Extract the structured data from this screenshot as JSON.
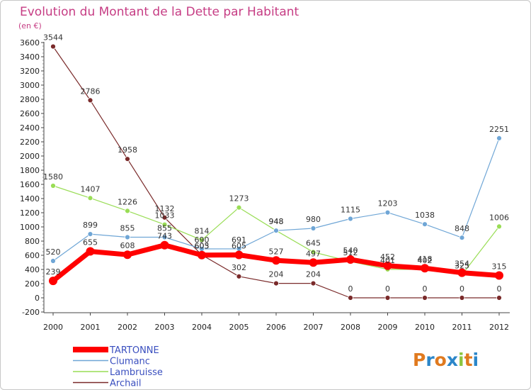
{
  "chart_data": {
    "type": "line",
    "title": "Evolution du Montant de la Dette par Habitant",
    "subtitle": "(en €)",
    "xlabel": "",
    "ylabel": "",
    "ylim": [
      -200,
      3600
    ],
    "y_ticks": [
      -200,
      0,
      200,
      400,
      600,
      800,
      1000,
      1200,
      1400,
      1600,
      1800,
      2000,
      2200,
      2400,
      2600,
      2800,
      3000,
      3200,
      3400,
      3600
    ],
    "categories": [
      "2000",
      "2001",
      "2002",
      "2003",
      "2004",
      "2005",
      "2006",
      "2007",
      "2008",
      "2009",
      "2010",
      "2011",
      "2012"
    ],
    "grid": false,
    "legend_position": "bottom-left",
    "series": [
      {
        "name": "TARTONNE",
        "color": "#ff0000",
        "values": [
          239,
          655,
          608,
          743,
          603,
          605,
          527,
          497,
          540,
          452,
          418,
          354,
          315
        ]
      },
      {
        "name": "Clumanc",
        "color": "#6fa6d6",
        "values": [
          520,
          899,
          855,
          855,
          690,
          691,
          948,
          980,
          1115,
          1203,
          1038,
          848,
          2251
        ]
      },
      {
        "name": "Lambruisse",
        "color": "#99dd55",
        "values": [
          1580,
          1407,
          1226,
          1033,
          814,
          1273,
          948,
          645,
          512,
          401,
          402,
          325,
          1006
        ]
      },
      {
        "name": "Archail",
        "color": "#7a2a2a",
        "values": [
          3544,
          2786,
          1958,
          1132,
          605,
          302,
          204,
          204,
          0,
          0,
          0,
          0,
          0
        ]
      }
    ]
  },
  "branding": {
    "logo_text": "Proxiti",
    "letter_colors": [
      "#e07a1f",
      "#2b86c9",
      "#e07a1f",
      "#2b86c9",
      "#8cc63f",
      "#e07a1f",
      "#2b86c9"
    ]
  }
}
